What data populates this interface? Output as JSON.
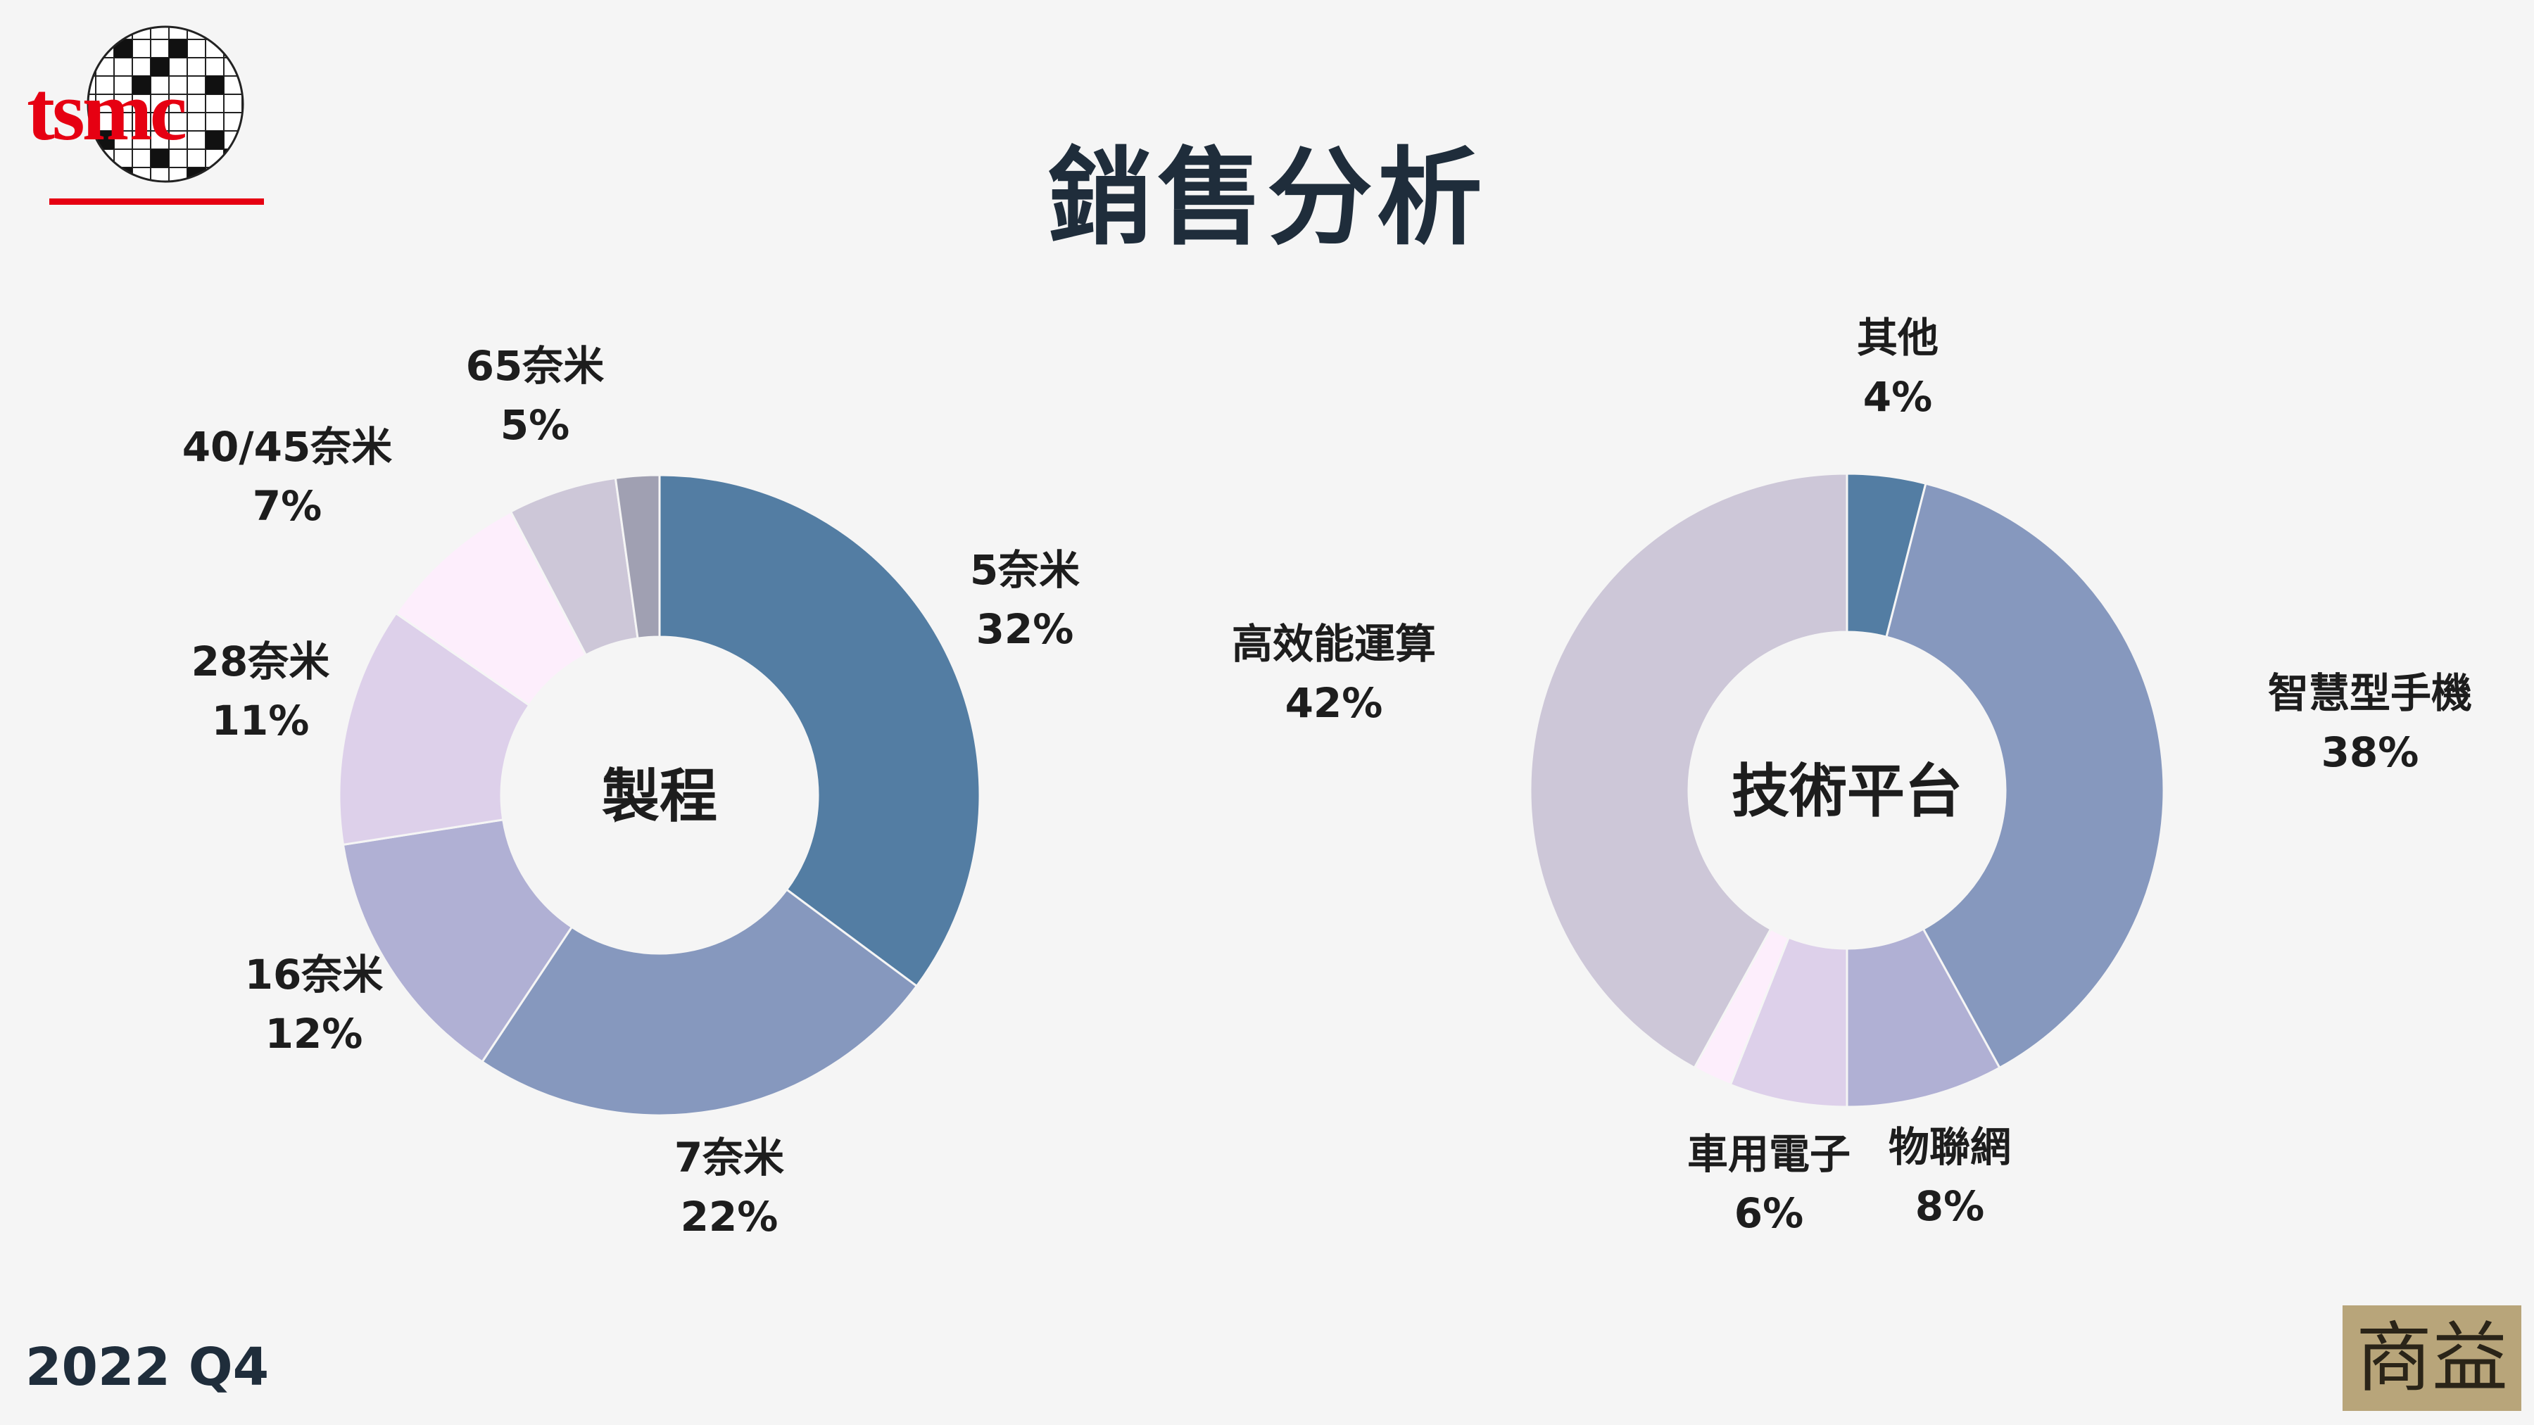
{
  "header": {
    "title": "銷售分析",
    "logo_text": "tsmc"
  },
  "footer": {
    "period": "2022 Q4",
    "seal_text": "商益"
  },
  "colors": {
    "background": "#f5f5f5",
    "title": "#1f2d3b",
    "tsmc_red": "#e60012"
  },
  "chart_data": [
    {
      "type": "pie",
      "donut": true,
      "center_label": "製程",
      "slices": [
        {
          "name": "5奈米",
          "value": 32,
          "pct": "32%",
          "color": "#537da3"
        },
        {
          "name": "7奈米",
          "value": 22,
          "pct": "22%",
          "color": "#8698be"
        },
        {
          "name": "16奈米",
          "value": 12,
          "pct": "12%",
          "color": "#b0b0d4"
        },
        {
          "name": "28奈米",
          "value": 11,
          "pct": "11%",
          "color": "#ddd0ea"
        },
        {
          "name": "40/45奈米",
          "value": 7,
          "pct": "7%",
          "color": "#fdeefc"
        },
        {
          "name": "65奈米",
          "value": 5,
          "pct": "5%",
          "color": "#cdc7d8"
        },
        {
          "name": "",
          "value": 2,
          "pct": "",
          "color": "#a0a0b2"
        }
      ]
    },
    {
      "type": "pie",
      "donut": true,
      "center_label": "技術平台",
      "slices": [
        {
          "name": "其他",
          "value": 4,
          "pct": "4%",
          "color": "#537da3"
        },
        {
          "name": "智慧型手機",
          "value": 38,
          "pct": "38%",
          "color": "#8698be"
        },
        {
          "name": "物聯網",
          "value": 8,
          "pct": "8%",
          "color": "#b0b0d4"
        },
        {
          "name": "車用電子",
          "value": 6,
          "pct": "6%",
          "color": "#ddd0ea"
        },
        {
          "name": "",
          "value": 2,
          "pct": "",
          "color": "#fdeefc"
        },
        {
          "name": "高效能運算",
          "value": 42,
          "pct": "42%",
          "color": "#cdc7d8"
        }
      ]
    }
  ]
}
